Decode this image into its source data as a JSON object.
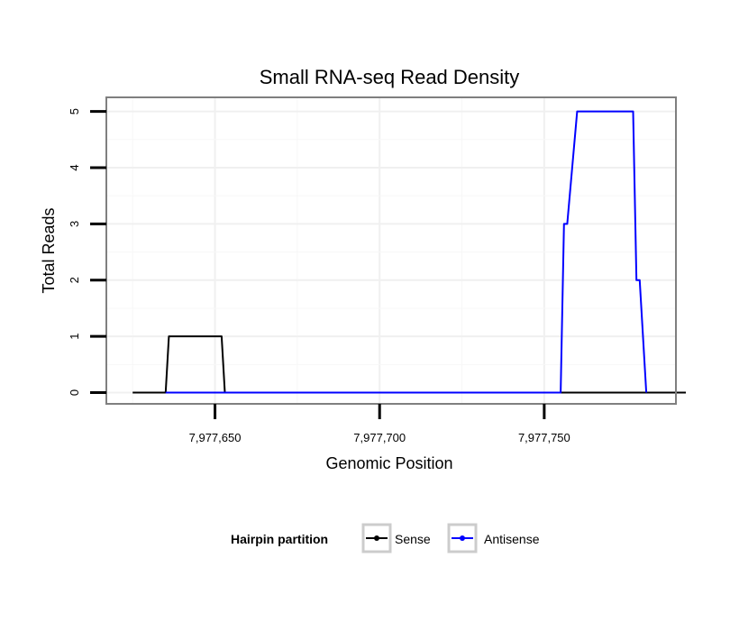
{
  "chart_data": {
    "type": "line",
    "title": "Small RNA-seq Read Density",
    "xlabel": "Genomic Position",
    "ylabel": "Total Reads",
    "xlim": [
      7977617,
      7977790
    ],
    "ylim": [
      -0.2,
      5.25
    ],
    "x_ticks": [
      7977650,
      7977700,
      7977750
    ],
    "x_tick_labels": [
      "7,977,650",
      "7,977,700",
      "7,977,750"
    ],
    "y_ticks": [
      0,
      1,
      2,
      3,
      4,
      5
    ],
    "y_tick_labels": [
      "0",
      "1",
      "2",
      "3",
      "4",
      "5"
    ],
    "grid": true,
    "legend": {
      "title": "Hairpin partition",
      "placement": "bottom",
      "entries": [
        "Sense",
        "Antisense"
      ]
    },
    "series": [
      {
        "name": "Sense",
        "color": "#000000",
        "x": [
          7977625,
          7977635,
          7977636,
          7977652,
          7977653,
          7977793
        ],
        "y": [
          0,
          0,
          1,
          1,
          0,
          0
        ]
      },
      {
        "name": "Antisense",
        "color": "#0000ff",
        "x": [
          7977635,
          7977755,
          7977756,
          7977757,
          7977760,
          7977777,
          7977778,
          7977779,
          7977781
        ],
        "y": [
          0,
          0,
          3,
          3,
          5,
          5,
          2,
          2,
          0
        ]
      }
    ]
  }
}
